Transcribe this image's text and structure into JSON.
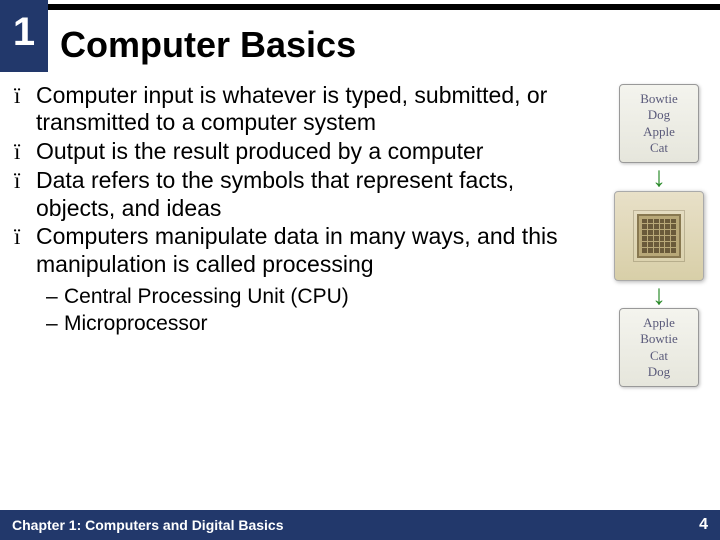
{
  "chapter_number": "1",
  "title": "Computer Basics",
  "bullets": [
    "Computer input is whatever is typed, submitted, or transmitted to a computer system",
    "Output is the result produced by a computer",
    "Data refers to the symbols that represent facts, objects, and ideas",
    "Computers manipulate data in many ways, and this manipulation is called processing"
  ],
  "sub_bullets": [
    "Central Processing Unit (CPU)",
    "Microprocessor"
  ],
  "sidebar": {
    "input_card": [
      "Bowtie",
      "Dog",
      "Apple",
      "Cat"
    ],
    "output_card": [
      "Apple",
      "Bowtie",
      "Cat",
      "Dog"
    ]
  },
  "footer": {
    "chapter_label": "Chapter 1: Computers and Digital Basics",
    "page": "4"
  },
  "colors": {
    "header_bg": "#22386b",
    "rule": "#000000",
    "arrow_green": "#2a8a2a",
    "card_text": "#5a5a7a"
  },
  "bullet_glyph": "ï",
  "dash_glyph": "–"
}
